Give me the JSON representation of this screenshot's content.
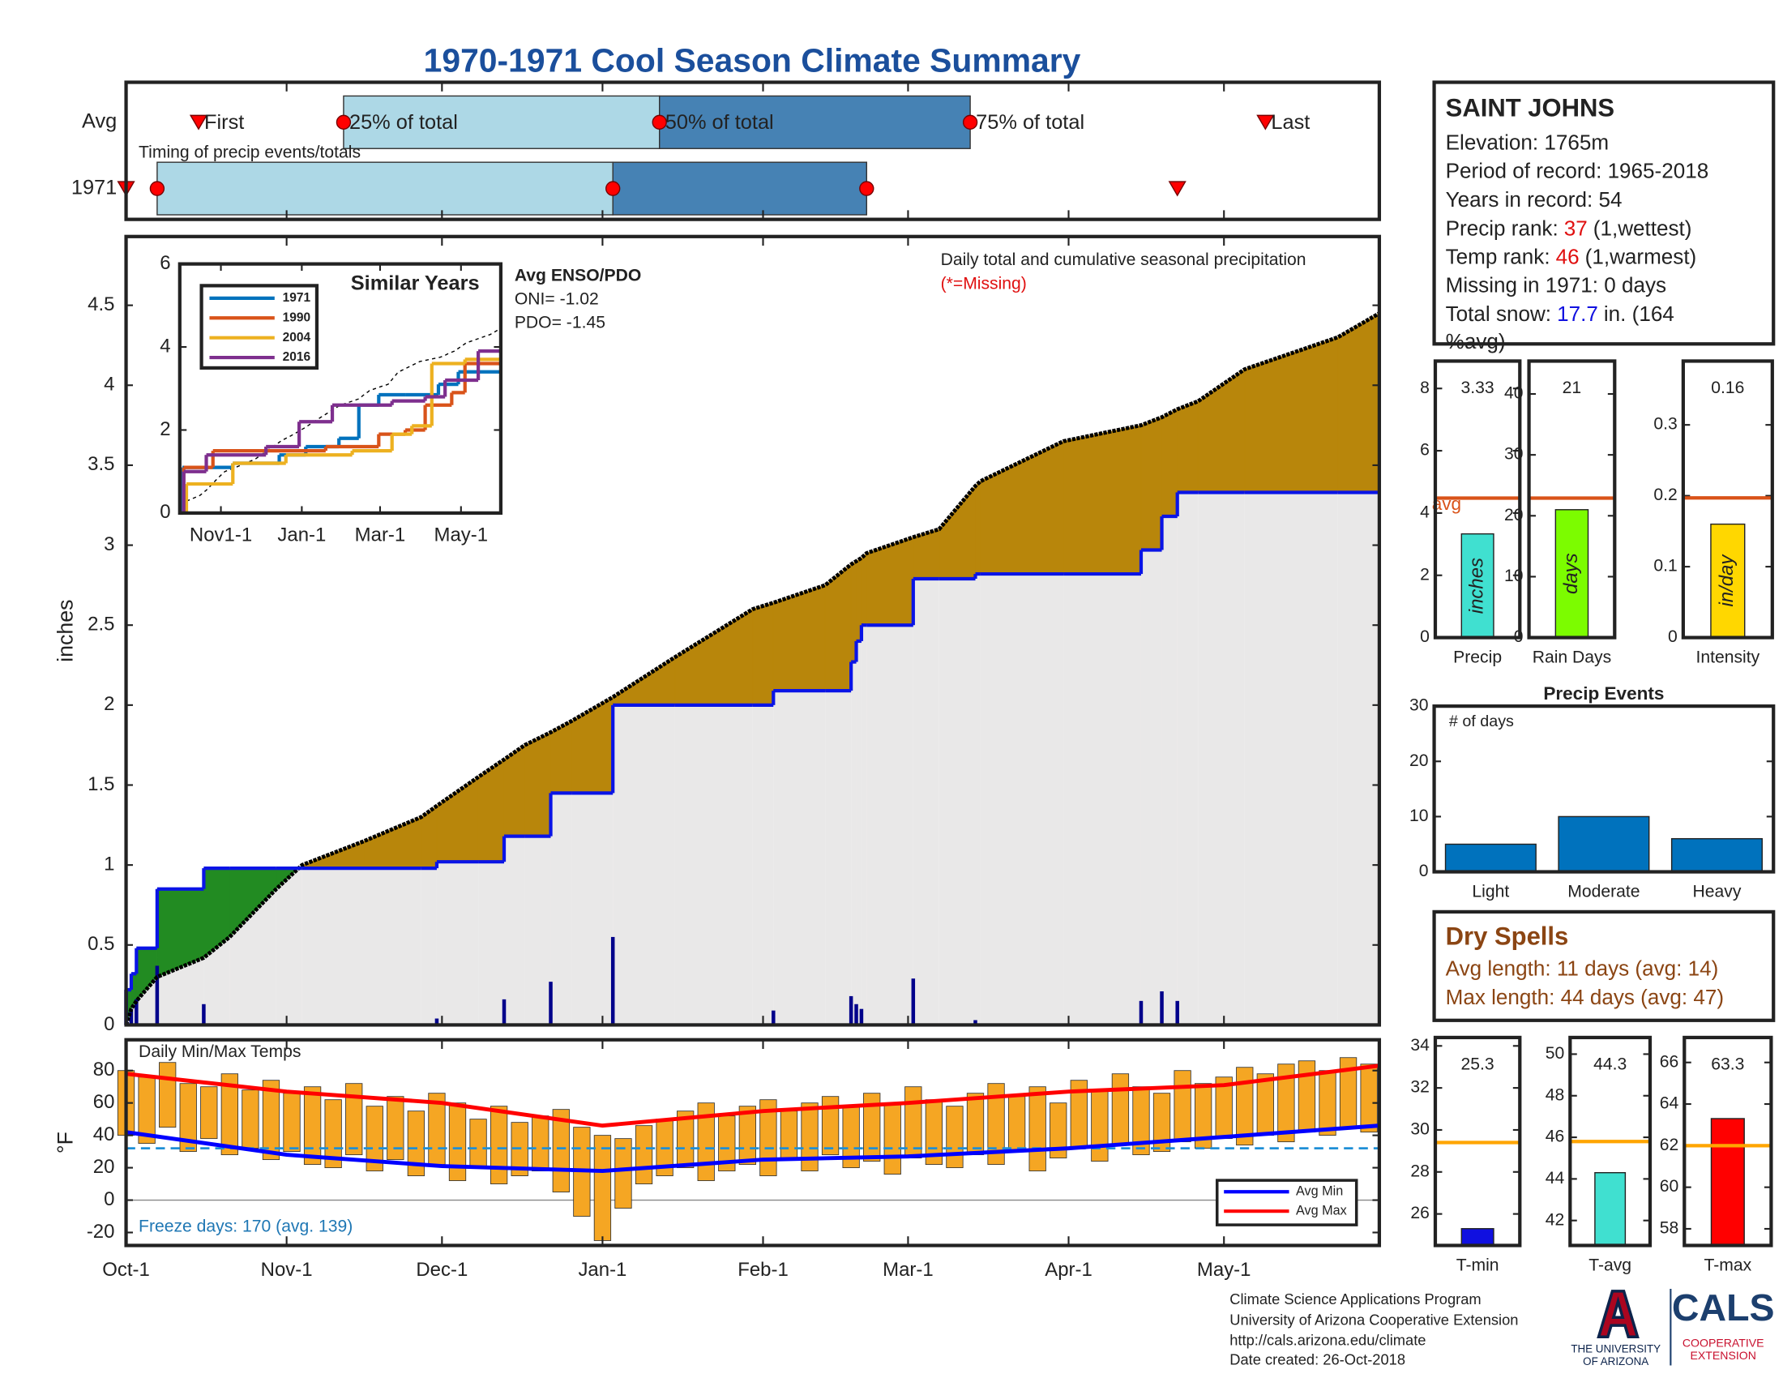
{
  "title": "1970-1971 Cool Season Climate Summary",
  "chart_data": [
    {
      "type": "timing",
      "label": "Timing of precip events/totals",
      "xlim": [
        0,
        242
      ],
      "markers": [
        "First",
        "25% of total",
        "50% of total",
        "75% of total",
        "Last"
      ],
      "rows": [
        {
          "name": "Avg",
          "values": [
            14,
            42,
            103,
            163,
            220
          ]
        },
        {
          "name": "1971",
          "values": [
            0,
            6,
            94,
            143,
            203
          ]
        }
      ],
      "colors": [
        "#add8e6",
        "#4682b4"
      ],
      "marker_color": "#ff0000"
    },
    {
      "type": "cumulative",
      "xlim": [
        0,
        242
      ],
      "ylim": [
        0,
        4.93
      ],
      "yticks": [
        0,
        0.5,
        1,
        1.5,
        2,
        2.5,
        3,
        3.5,
        4,
        4.5
      ],
      "ylabel": "inches",
      "annotation": "Daily total and cumulative seasonal precipitation",
      "missing_note": "(*=Missing)",
      "x": [
        0,
        1,
        2,
        6,
        15,
        20,
        29,
        34,
        46,
        57,
        60,
        68,
        73,
        77,
        82,
        86,
        94,
        106,
        121,
        125,
        135,
        140,
        141,
        142,
        143,
        152,
        157,
        164,
        165,
        181,
        196,
        200,
        203,
        207,
        216,
        234,
        242
      ],
      "series": [
        {
          "color": "#000000",
          "values": [
            0,
            0.1,
            0.15,
            0.3,
            0.42,
            0.55,
            0.85,
            1.0,
            1.15,
            1.3,
            1.37,
            1.55,
            1.66,
            1.75,
            1.83,
            1.9,
            2.05,
            2.3,
            2.6,
            2.64,
            2.75,
            2.88,
            2.9,
            2.92,
            2.95,
            3.05,
            3.1,
            3.37,
            3.4,
            3.65,
            3.75,
            3.8,
            3.85,
            3.9,
            4.1,
            4.3,
            4.45
          ]
        },
        {
          "color": "#0a14e6",
          "values": [
            0.22,
            0.32,
            0.48,
            0.85,
            0.98,
            0.98,
            0.98,
            0.98,
            0.98,
            0.98,
            1.02,
            1.02,
            1.18,
            1.18,
            1.45,
            1.45,
            2.0,
            2.0,
            2.0,
            2.09,
            2.09,
            2.27,
            2.4,
            2.5,
            2.5,
            2.79,
            2.79,
            2.82,
            2.82,
            2.82,
            2.97,
            3.18,
            3.33,
            3.33,
            3.33,
            3.33,
            3.33
          ]
        }
      ],
      "above_color": "#228b22",
      "below_color": "#b8860b",
      "background": "#e9e8e8",
      "daily": {
        "color": "#00008b",
        "x": [
          0,
          1,
          2,
          6,
          15,
          60,
          73,
          82,
          94,
          125,
          140,
          141,
          142,
          152,
          164,
          196,
          200,
          203
        ],
        "values": [
          0.22,
          0.1,
          0.16,
          0.37,
          0.13,
          0.04,
          0.16,
          0.27,
          0.55,
          0.09,
          0.18,
          0.13,
          0.1,
          0.29,
          0.03,
          0.15,
          0.21,
          0.15
        ]
      }
    },
    {
      "type": "step-line",
      "title": "Similar Years",
      "xlim": [
        0,
        242
      ],
      "ylim": [
        0,
        6
      ],
      "yticks": [
        0,
        2,
        4,
        6
      ],
      "xticks": [
        {
          "value": 31,
          "label": "Nov1-1"
        },
        {
          "value": 92,
          "label": "Jan-1"
        },
        {
          "value": 151,
          "label": "Mar-1"
        },
        {
          "value": 212,
          "label": "May-1"
        }
      ],
      "annotations": [
        "Avg ENSO/PDO",
        "ONI= -1.02",
        "PDO= -1.45"
      ],
      "series": [
        {
          "name": "1971",
          "color": "#0072bd",
          "x": [
            0,
            2,
            40,
            75,
            95,
            120,
            135,
            150,
            170,
            195,
            210,
            242
          ],
          "values": [
            0,
            1.1,
            1.2,
            1.4,
            1.6,
            1.8,
            2.6,
            2.85,
            2.85,
            3.1,
            3.4,
            3.4
          ]
        },
        {
          "name": "1990",
          "color": "#d95319",
          "x": [
            0,
            3,
            25,
            60,
            110,
            150,
            170,
            185,
            205,
            215,
            242
          ],
          "values": [
            0,
            1.1,
            1.5,
            1.5,
            1.6,
            1.9,
            2.0,
            2.6,
            2.9,
            3.6,
            3.6
          ]
        },
        {
          "name": "2004",
          "color": "#edb120",
          "x": [
            0,
            5,
            40,
            80,
            130,
            160,
            175,
            190,
            215,
            242
          ],
          "values": [
            0,
            0.7,
            1.2,
            1.4,
            1.5,
            1.9,
            2.1,
            3.6,
            3.7,
            3.7
          ]
        },
        {
          "name": "2016",
          "color": "#7e2f8e",
          "x": [
            0,
            3,
            20,
            65,
            90,
            115,
            160,
            185,
            200,
            225,
            242
          ],
          "values": [
            0,
            1.0,
            1.4,
            1.6,
            2.2,
            2.6,
            2.7,
            2.8,
            3.2,
            3.9,
            3.9
          ]
        }
      ]
    },
    {
      "type": "range-bar",
      "title": "Daily Min/Max Temps",
      "ylabel": "°F",
      "xlim": [
        0,
        242
      ],
      "ylim": [
        -28,
        99
      ],
      "yticks": [
        -20,
        0,
        20,
        40,
        60,
        80
      ],
      "xticks": [
        {
          "value": 0,
          "label": "Oct-1"
        },
        {
          "value": 31,
          "label": "Nov-1"
        },
        {
          "value": 61,
          "label": "Dec-1"
        },
        {
          "value": 92,
          "label": "Jan-1"
        },
        {
          "value": 123,
          "label": "Feb-1"
        },
        {
          "value": 151,
          "label": "Mar-1"
        },
        {
          "value": 182,
          "label": "Apr-1"
        },
        {
          "value": 212,
          "label": "May-1"
        }
      ],
      "freeze_line": 32,
      "freeze_color": "#1f8fd6",
      "freeze_label": "Freeze days: 170 (avg. 139)",
      "daily": {
        "color": "#f5a623",
        "x": [
          0,
          4,
          8,
          12,
          16,
          20,
          24,
          28,
          32,
          36,
          40,
          44,
          48,
          52,
          56,
          60,
          64,
          68,
          72,
          76,
          80,
          84,
          88,
          92,
          96,
          100,
          104,
          108,
          112,
          116,
          120,
          124,
          128,
          132,
          136,
          140,
          144,
          148,
          152,
          156,
          160,
          164,
          168,
          172,
          176,
          180,
          184,
          188,
          192,
          196,
          200,
          204,
          208,
          212,
          216,
          220,
          224,
          228,
          232,
          236,
          240
        ],
        "max": [
          80,
          76,
          85,
          72,
          70,
          78,
          68,
          74,
          66,
          70,
          62,
          72,
          58,
          64,
          55,
          66,
          60,
          50,
          58,
          48,
          52,
          56,
          45,
          40,
          38,
          46,
          50,
          55,
          60,
          52,
          58,
          62,
          55,
          60,
          64,
          58,
          66,
          60,
          70,
          62,
          58,
          66,
          72,
          64,
          70,
          60,
          74,
          68,
          78,
          70,
          66,
          80,
          72,
          76,
          82,
          78,
          84,
          86,
          80,
          88,
          84
        ],
        "min": [
          40,
          35,
          45,
          30,
          38,
          28,
          32,
          25,
          30,
          22,
          20,
          28,
          18,
          25,
          15,
          22,
          12,
          20,
          10,
          15,
          18,
          5,
          -10,
          -25,
          -5,
          10,
          15,
          20,
          12,
          18,
          22,
          15,
          25,
          18,
          28,
          20,
          24,
          16,
          26,
          22,
          20,
          28,
          22,
          30,
          18,
          26,
          32,
          24,
          34,
          28,
          30,
          36,
          32,
          38,
          34,
          40,
          36,
          42,
          40,
          44,
          42
        ]
      },
      "series": [
        {
          "name": "Avg Min",
          "color": "#0000ff",
          "x": [
            0,
            31,
            61,
            92,
            123,
            151,
            182,
            212,
            242
          ],
          "values": [
            42,
            28,
            21,
            18,
            25,
            27,
            32,
            39,
            46
          ]
        },
        {
          "name": "Avg Max",
          "color": "#ff0000",
          "x": [
            0,
            31,
            61,
            92,
            123,
            151,
            182,
            212,
            242
          ],
          "values": [
            78,
            67,
            60,
            46,
            55,
            60,
            67,
            71,
            83
          ]
        }
      ]
    },
    {
      "type": "bar",
      "categories": [
        "Precip"
      ],
      "values": [
        3.33
      ],
      "color": "#40e0d0",
      "ylim": [
        0,
        8.88
      ],
      "yticks": [
        0,
        2,
        4,
        6,
        8
      ],
      "avg": 4.48,
      "avg_color": "#d95319",
      "avg_label": "avg",
      "unit_label": "inches"
    },
    {
      "type": "bar",
      "categories": [
        "Rain Days"
      ],
      "values": [
        21
      ],
      "color": "#7cfc00",
      "ylim": [
        0,
        45.4
      ],
      "yticks": [
        0,
        10,
        20,
        30,
        40
      ],
      "avg": 22.9,
      "avg_color": "#d95319",
      "unit_label": "days"
    },
    {
      "type": "bar",
      "categories": [
        "Intensity"
      ],
      "values": [
        0.16
      ],
      "color": "#ffd700",
      "ylim": [
        0,
        0.39
      ],
      "yticks": [
        0,
        0.1,
        0.2,
        0.3
      ],
      "avg": 0.197,
      "avg_color": "#d95319",
      "unit_label": "in/day"
    },
    {
      "type": "bar",
      "title": "Precip Events",
      "annotation": "# of days",
      "categories": [
        "Light",
        "Moderate",
        "Heavy"
      ],
      "values": [
        5,
        10,
        6
      ],
      "color": "#0072bd",
      "ylim": [
        0,
        30
      ],
      "yticks": [
        0,
        10,
        20,
        30
      ]
    },
    {
      "type": "bar",
      "categories": [
        "T-min"
      ],
      "values": [
        25.3
      ],
      "color": "#1010e0",
      "ylim": [
        24.5,
        34.4
      ],
      "yticks": [
        26,
        28,
        30,
        32,
        34
      ],
      "avg": 29.4,
      "avg_color": "#ffa500"
    },
    {
      "type": "bar",
      "categories": [
        "T-avg"
      ],
      "values": [
        44.3
      ],
      "color": "#40e0d0",
      "ylim": [
        40.8,
        50.8
      ],
      "yticks": [
        42,
        44,
        46,
        48,
        50
      ],
      "avg": 45.8,
      "avg_color": "#ffa500"
    },
    {
      "type": "bar",
      "categories": [
        "T-max"
      ],
      "values": [
        63.3
      ],
      "color": "#ff0000",
      "ylim": [
        57.2,
        67.2
      ],
      "yticks": [
        58,
        60,
        62,
        64,
        66
      ],
      "avg": 62.0,
      "avg_color": "#ffa500"
    }
  ],
  "station": {
    "name": "SAINT JOHNS",
    "lines": [
      "Elevation: 1765m",
      "Period of record: 1965-2018",
      "Years in record: 54"
    ],
    "precip_rank": {
      "label": "Precip rank:",
      "value": 37,
      "note": "(1,wettest)"
    },
    "temp_rank": {
      "label": "Temp rank:",
      "value": 46,
      "note": "(1,warmest)"
    },
    "missing": "Missing in 1971: 0 days",
    "snow": {
      "label": "Total snow:",
      "value": 17.7,
      "note": "in. (164",
      "note2": "%avg)"
    }
  },
  "dry_spells": {
    "title": "Dry Spells",
    "lines": [
      "Avg length: 11 days (avg: 14)",
      "Max length: 44 days (avg: 47)"
    ]
  },
  "footer": {
    "lines": [
      "Climate Science Applications Program",
      "University of Arizona Cooperative Extension",
      "http://cals.arizona.edu/climate",
      " Date created: 26-Oct-2018"
    ],
    "university": [
      "THE UNIVERSITY",
      "OF ARIZONA"
    ],
    "cals": "CALS",
    "extension": [
      "COOPERATIVE",
      "EXTENSION"
    ]
  }
}
